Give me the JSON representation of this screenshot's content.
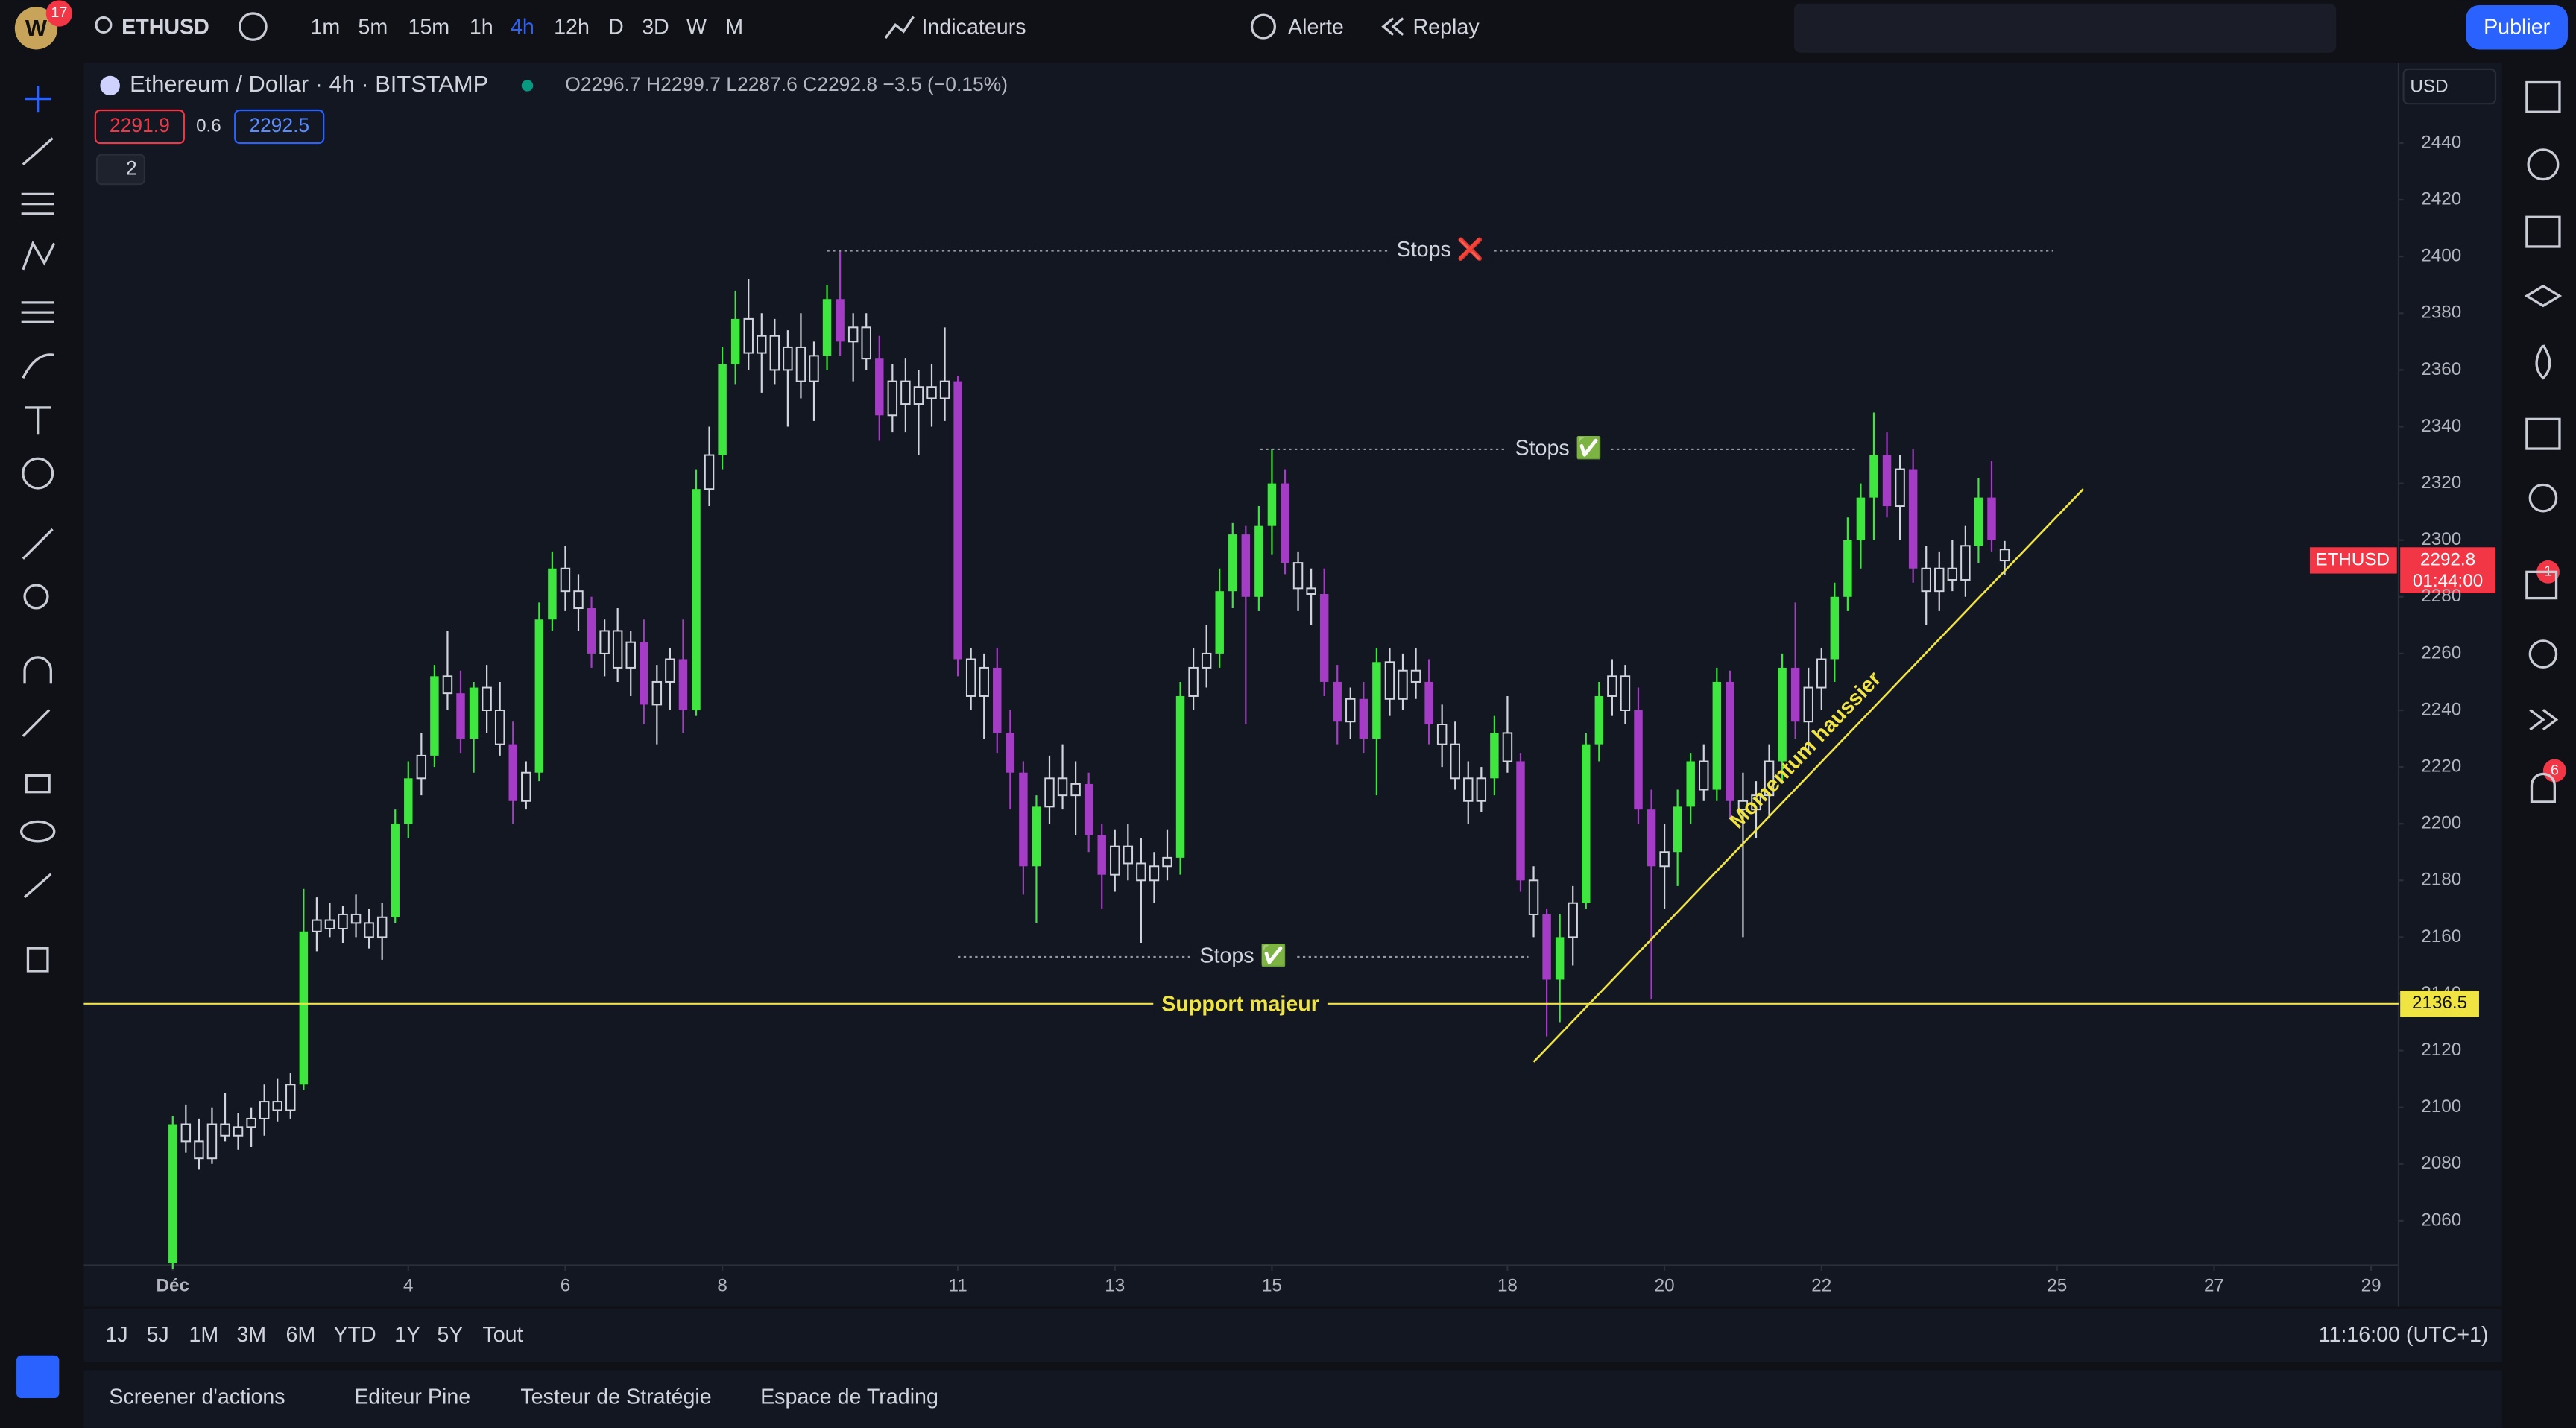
{
  "ui": {
    "badge": "17",
    "symbol": "ETHUSD",
    "timeframes": [
      "1m",
      "5m",
      "15m",
      "1h",
      "4h",
      "12h",
      "D",
      "3D",
      "W",
      "M"
    ],
    "indicators": "Indicateurs",
    "alert": "Alerte",
    "replay": "Replay",
    "publish": "Publier",
    "instrument": "Ethereum / Dollar · 4h · BITSTAMP",
    "ohlc_legend": "O2296.7 H2299.7 L2287.6 C2292.8 −3.5 (−0.15%)",
    "bid": "2291.9",
    "spread": "0.6",
    "ask": "2292.5",
    "collapsed": "2",
    "currency": "USD",
    "price_tag": {
      "symbol": "ETHUSD",
      "price": "2292.8",
      "countdown": "01:44:00"
    },
    "ranges": [
      "1J",
      "5J",
      "1M",
      "3M",
      "6M",
      "YTD",
      "1Y",
      "5Y",
      "Tout"
    ],
    "clock": "11:16:00 (UTC+1)",
    "tabs": [
      "Screener d'actions",
      "Editeur Pine",
      "Testeur de Stratégie",
      "Espace de Trading"
    ],
    "chat_badge": "1",
    "alert_badge": "6"
  },
  "chart_data": {
    "type": "candlestick",
    "up_color": "#3fe63f",
    "down_color": "#a53cc6",
    "neutral_color": "#d1d4dc",
    "ylim": [
      2040,
      2465
    ],
    "yticks": [
      2060,
      2080,
      2100,
      2120,
      2140,
      2160,
      2180,
      2200,
      2220,
      2240,
      2260,
      2280,
      2300,
      2320,
      2340,
      2360,
      2380,
      2400,
      2420,
      2440
    ],
    "xlim": [
      -6.8,
      170.1
    ],
    "xticks": [
      {
        "value": 0,
        "label": "Déc"
      },
      {
        "value": 18,
        "label": "4"
      },
      {
        "value": 30,
        "label": "6"
      },
      {
        "value": 42,
        "label": "8"
      },
      {
        "value": 60,
        "label": "11"
      },
      {
        "value": 72,
        "label": "13"
      },
      {
        "value": 84,
        "label": "15"
      },
      {
        "value": 102,
        "label": "18"
      },
      {
        "value": 114,
        "label": "20"
      },
      {
        "value": 126,
        "label": "22"
      },
      {
        "value": 144,
        "label": "25"
      },
      {
        "value": 156,
        "label": "27"
      },
      {
        "value": 168,
        "label": "29"
      }
    ],
    "ohlc": [
      [
        2045,
        2097,
        2043,
        2094
      ],
      [
        2094,
        2101,
        2084,
        2088
      ],
      [
        2088,
        2096,
        2078,
        2082
      ],
      [
        2082,
        2100,
        2080,
        2094
      ],
      [
        2094,
        2105,
        2088,
        2090
      ],
      [
        2090,
        2098,
        2085,
        2093
      ],
      [
        2093,
        2100,
        2086,
        2096
      ],
      [
        2096,
        2108,
        2090,
        2102
      ],
      [
        2102,
        2110,
        2095,
        2099
      ],
      [
        2099,
        2112,
        2096,
        2108
      ],
      [
        2108,
        2177,
        2106,
        2162
      ],
      [
        2162,
        2174,
        2155,
        2166
      ],
      [
        2166,
        2172,
        2160,
        2163
      ],
      [
        2163,
        2171,
        2158,
        2168
      ],
      [
        2168,
        2175,
        2160,
        2165
      ],
      [
        2165,
        2170,
        2156,
        2160
      ],
      [
        2160,
        2172,
        2152,
        2167
      ],
      [
        2167,
        2205,
        2165,
        2200
      ],
      [
        2200,
        2222,
        2195,
        2216
      ],
      [
        2216,
        2232,
        2210,
        2224
      ],
      [
        2224,
        2256,
        2220,
        2252
      ],
      [
        2252,
        2268,
        2240,
        2246
      ],
      [
        2246,
        2254,
        2225,
        2230
      ],
      [
        2230,
        2250,
        2218,
        2248
      ],
      [
        2248,
        2256,
        2232,
        2240
      ],
      [
        2240,
        2250,
        2224,
        2228
      ],
      [
        2228,
        2236,
        2200,
        2208
      ],
      [
        2208,
        2222,
        2205,
        2218
      ],
      [
        2218,
        2278,
        2215,
        2272
      ],
      [
        2272,
        2296,
        2268,
        2290
      ],
      [
        2290,
        2298,
        2275,
        2282
      ],
      [
        2282,
        2288,
        2268,
        2276
      ],
      [
        2276,
        2280,
        2255,
        2260
      ],
      [
        2260,
        2272,
        2252,
        2268
      ],
      [
        2268,
        2276,
        2250,
        2255
      ],
      [
        2255,
        2268,
        2245,
        2264
      ],
      [
        2264,
        2272,
        2235,
        2242
      ],
      [
        2242,
        2256,
        2228,
        2250
      ],
      [
        2250,
        2262,
        2240,
        2258
      ],
      [
        2258,
        2272,
        2232,
        2240
      ],
      [
        2240,
        2325,
        2238,
        2318
      ],
      [
        2318,
        2340,
        2312,
        2330
      ],
      [
        2330,
        2368,
        2325,
        2362
      ],
      [
        2362,
        2388,
        2355,
        2378
      ],
      [
        2378,
        2392,
        2360,
        2366
      ],
      [
        2366,
        2380,
        2352,
        2372
      ],
      [
        2372,
        2378,
        2355,
        2360
      ],
      [
        2360,
        2374,
        2340,
        2368
      ],
      [
        2368,
        2380,
        2350,
        2356
      ],
      [
        2356,
        2370,
        2342,
        2365
      ],
      [
        2365,
        2390,
        2360,
        2385
      ],
      [
        2385,
        2402,
        2365,
        2370
      ],
      [
        2370,
        2380,
        2356,
        2375
      ],
      [
        2375,
        2380,
        2360,
        2364
      ],
      [
        2364,
        2372,
        2335,
        2344
      ],
      [
        2344,
        2362,
        2338,
        2356
      ],
      [
        2356,
        2364,
        2338,
        2348
      ],
      [
        2348,
        2360,
        2330,
        2354
      ],
      [
        2354,
        2362,
        2340,
        2350
      ],
      [
        2350,
        2375,
        2342,
        2356
      ],
      [
        2356,
        2358,
        2252,
        2258
      ],
      [
        2258,
        2262,
        2240,
        2245
      ],
      [
        2245,
        2260,
        2230,
        2255
      ],
      [
        2255,
        2262,
        2225,
        2232
      ],
      [
        2232,
        2240,
        2205,
        2218
      ],
      [
        2218,
        2222,
        2175,
        2185
      ],
      [
        2185,
        2210,
        2165,
        2206
      ],
      [
        2206,
        2224,
        2200,
        2216
      ],
      [
        2216,
        2228,
        2205,
        2210
      ],
      [
        2210,
        2222,
        2196,
        2214
      ],
      [
        2214,
        2218,
        2190,
        2196
      ],
      [
        2196,
        2200,
        2170,
        2182
      ],
      [
        2182,
        2198,
        2176,
        2192
      ],
      [
        2192,
        2200,
        2180,
        2186
      ],
      [
        2186,
        2195,
        2158,
        2180
      ],
      [
        2180,
        2190,
        2172,
        2185
      ],
      [
        2185,
        2198,
        2180,
        2188
      ],
      [
        2188,
        2250,
        2182,
        2245
      ],
      [
        2245,
        2262,
        2240,
        2255
      ],
      [
        2255,
        2270,
        2248,
        2260
      ],
      [
        2260,
        2290,
        2255,
        2282
      ],
      [
        2282,
        2306,
        2276,
        2302
      ],
      [
        2302,
        2305,
        2235,
        2280
      ],
      [
        2280,
        2312,
        2275,
        2305
      ],
      [
        2305,
        2332,
        2295,
        2320
      ],
      [
        2320,
        2325,
        2288,
        2292
      ],
      [
        2292,
        2296,
        2275,
        2283
      ],
      [
        2283,
        2290,
        2270,
        2281
      ],
      [
        2281,
        2290,
        2245,
        2250
      ],
      [
        2250,
        2256,
        2228,
        2236
      ],
      [
        2236,
        2248,
        2230,
        2244
      ],
      [
        2244,
        2250,
        2225,
        2230
      ],
      [
        2230,
        2262,
        2210,
        2257
      ],
      [
        2257,
        2262,
        2238,
        2244
      ],
      [
        2244,
        2260,
        2240,
        2254
      ],
      [
        2254,
        2262,
        2244,
        2250
      ],
      [
        2250,
        2258,
        2228,
        2235
      ],
      [
        2235,
        2242,
        2220,
        2228
      ],
      [
        2228,
        2236,
        2212,
        2216
      ],
      [
        2216,
        2222,
        2200,
        2208
      ],
      [
        2208,
        2220,
        2204,
        2216
      ],
      [
        2216,
        2238,
        2210,
        2232
      ],
      [
        2232,
        2245,
        2218,
        2222
      ],
      [
        2222,
        2225,
        2176,
        2180
      ],
      [
        2180,
        2185,
        2160,
        2168
      ],
      [
        2168,
        2170,
        2125,
        2145
      ],
      [
        2145,
        2168,
        2130,
        2160
      ],
      [
        2160,
        2178,
        2150,
        2172
      ],
      [
        2172,
        2232,
        2170,
        2228
      ],
      [
        2228,
        2250,
        2222,
        2245
      ],
      [
        2245,
        2258,
        2238,
        2252
      ],
      [
        2252,
        2256,
        2235,
        2240
      ],
      [
        2240,
        2248,
        2200,
        2205
      ],
      [
        2205,
        2212,
        2138,
        2185
      ],
      [
        2185,
        2200,
        2170,
        2190
      ],
      [
        2190,
        2212,
        2178,
        2206
      ],
      [
        2206,
        2225,
        2200,
        2222
      ],
      [
        2222,
        2228,
        2208,
        2212
      ],
      [
        2212,
        2255,
        2208,
        2250
      ],
      [
        2250,
        2254,
        2202,
        2208
      ],
      [
        2208,
        2218,
        2160,
        2205
      ],
      [
        2205,
        2215,
        2195,
        2210
      ],
      [
        2210,
        2228,
        2202,
        2222
      ],
      [
        2222,
        2260,
        2215,
        2255
      ],
      [
        2255,
        2278,
        2230,
        2236
      ],
      [
        2236,
        2255,
        2225,
        2248
      ],
      [
        2248,
        2262,
        2240,
        2258
      ],
      [
        2258,
        2285,
        2250,
        2280
      ],
      [
        2280,
        2308,
        2275,
        2300
      ],
      [
        2300,
        2320,
        2290,
        2315
      ],
      [
        2315,
        2345,
        2300,
        2330
      ],
      [
        2330,
        2338,
        2308,
        2312
      ],
      [
        2312,
        2330,
        2300,
        2325
      ],
      [
        2325,
        2332,
        2285,
        2290
      ],
      [
        2290,
        2298,
        2270,
        2282
      ],
      [
        2282,
        2296,
        2275,
        2290
      ],
      [
        2290,
        2300,
        2282,
        2286
      ],
      [
        2286,
        2305,
        2280,
        2298
      ],
      [
        2298,
        2322,
        2292,
        2315
      ],
      [
        2315,
        2328,
        2296,
        2300
      ],
      [
        2296.7,
        2299.7,
        2287.6,
        2292.8
      ]
    ],
    "support": {
      "label": "Support majeur",
      "value": 2136.5,
      "color": "#f0e442"
    },
    "stops": [
      {
        "label": "Stops ❌",
        "value": 2402,
        "x": [
          50,
          143.7
        ]
      },
      {
        "label": "Stops ✅",
        "value": 2332,
        "x": [
          83.1,
          128.7
        ]
      },
      {
        "label": "Stops ✅",
        "value": 2153,
        "x": [
          60,
          103.6
        ]
      }
    ],
    "trendline": {
      "label": "Momentum haussier",
      "x": [
        104,
        146
      ],
      "values": [
        2116,
        2318
      ],
      "color": "#f0e442"
    }
  }
}
